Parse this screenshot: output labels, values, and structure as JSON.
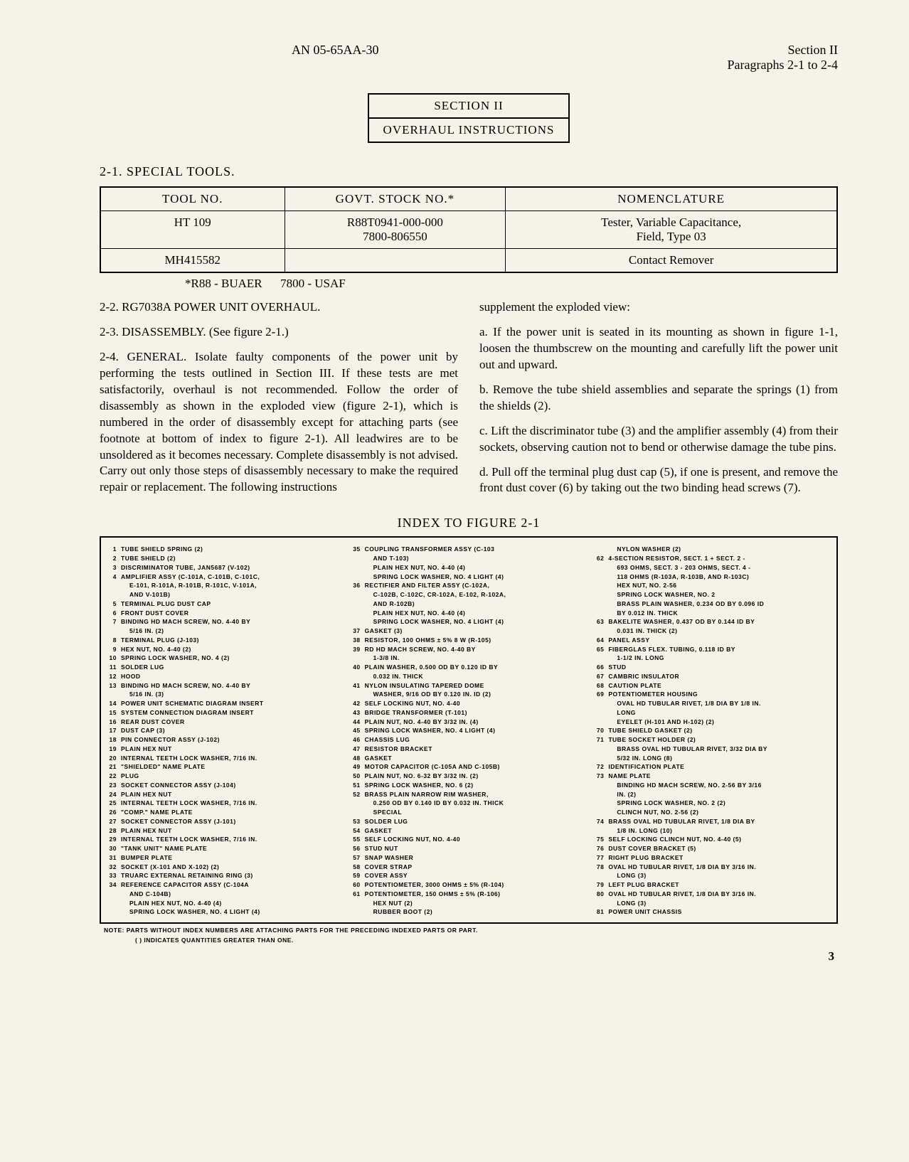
{
  "header": {
    "docNumber": "AN 05-65AA-30",
    "section": "Section II",
    "paragraphs": "Paragraphs 2-1 to 2-4"
  },
  "sectionBox": {
    "line1": "SECTION II",
    "line2": "OVERHAUL INSTRUCTIONS"
  },
  "specialTools": {
    "heading": "2-1. SPECIAL TOOLS.",
    "columns": [
      "TOOL NO.",
      "GOVT. STOCK NO.*",
      "NOMENCLATURE"
    ],
    "rows": [
      {
        "tool": "HT 109",
        "stock": "R88T0941-000-000\n7800-806550",
        "nomen": "Tester, Variable Capacitance,\nField, Type 03"
      },
      {
        "tool": "MH415582",
        "stock": "",
        "nomen": "Contact Remover"
      }
    ],
    "footnote": "*R88 - BUAER      7800 - USAF"
  },
  "body": {
    "leftCol": [
      "2-2. RG7038A POWER UNIT OVERHAUL.",
      "2-3. DISASSEMBLY. (See figure 2-1.)",
      "2-4. GENERAL. Isolate faulty components of the power unit by performing the tests outlined in Section III. If these tests are met satisfactorily, overhaul is not recommended. Follow the order of disassembly as shown in the exploded view (figure 2-1), which is numbered in the order of disassembly except for attaching parts (see footnote at bottom of index to figure 2-1). All leadwires are to be unsoldered as it becomes necessary. Complete disassembly is not advised. Carry out only those steps of disassembly necessary to make the required repair or replacement. The following instructions"
    ],
    "rightCol": [
      "supplement the exploded view:",
      "a. If the power unit is seated in its mounting as shown in figure 1-1, loosen the thumbscrew on the mounting and carefully lift the power unit out and upward.",
      "b. Remove the tube shield assemblies and separate the springs (1) from the shields (2).",
      "c. Lift the discriminator tube (3) and the amplifier assembly (4) from their sockets, observing caution not to bend or otherwise damage the tube pins.",
      "d. Pull off the terminal plug dust cap (5), if one is present, and remove the front dust cover (6) by taking out the two binding head screws (7)."
    ]
  },
  "indexTitle": "INDEX TO FIGURE 2-1",
  "indexCols": [
    [
      {
        "n": "1",
        "t": "TUBE SHIELD SPRING (2)"
      },
      {
        "n": "2",
        "t": "TUBE SHIELD (2)"
      },
      {
        "n": "3",
        "t": "DISCRIMINATOR TUBE, JAN5687 (V-102)"
      },
      {
        "n": "4",
        "t": "AMPLIFIER ASSY (C-101A, C-101B, C-101C,"
      },
      {
        "n": "",
        "t": "E-101, R-101A, R-101B, R-101C, V-101A,",
        "sub": true
      },
      {
        "n": "",
        "t": "AND V-101B)",
        "sub": true
      },
      {
        "n": "5",
        "t": "TERMINAL PLUG DUST CAP"
      },
      {
        "n": "6",
        "t": "FRONT DUST COVER"
      },
      {
        "n": "7",
        "t": "BINDING HD MACH SCREW, NO. 4-40 BY"
      },
      {
        "n": "",
        "t": "5/16 IN. (2)",
        "sub": true
      },
      {
        "n": "8",
        "t": "TERMINAL PLUG (J-103)"
      },
      {
        "n": "9",
        "t": "HEX NUT, NO. 4-40 (2)"
      },
      {
        "n": "10",
        "t": "SPRING LOCK WASHER, NO. 4 (2)"
      },
      {
        "n": "11",
        "t": "SOLDER LUG"
      },
      {
        "n": "12",
        "t": "HOOD"
      },
      {
        "n": "13",
        "t": "BINDING HD MACH SCREW, NO. 4-40 BY"
      },
      {
        "n": "",
        "t": "5/16 IN. (3)",
        "sub": true
      },
      {
        "n": "14",
        "t": "POWER UNIT SCHEMATIC DIAGRAM INSERT"
      },
      {
        "n": "15",
        "t": "SYSTEM CONNECTION DIAGRAM INSERT"
      },
      {
        "n": "16",
        "t": "REAR DUST COVER"
      },
      {
        "n": "17",
        "t": "DUST CAP (3)"
      },
      {
        "n": "18",
        "t": "PIN CONNECTOR ASSY (J-102)"
      },
      {
        "n": "19",
        "t": "PLAIN HEX NUT"
      },
      {
        "n": "20",
        "t": "INTERNAL TEETH LOCK WASHER, 7/16 IN."
      },
      {
        "n": "21",
        "t": "\"SHIELDED\" NAME PLATE"
      },
      {
        "n": "22",
        "t": "PLUG"
      },
      {
        "n": "23",
        "t": "SOCKET CONNECTOR ASSY (J-104)"
      },
      {
        "n": "24",
        "t": "PLAIN HEX NUT"
      },
      {
        "n": "25",
        "t": "INTERNAL TEETH LOCK WASHER, 7/16 IN."
      },
      {
        "n": "26",
        "t": "\"COMP.\" NAME PLATE"
      },
      {
        "n": "27",
        "t": "SOCKET CONNECTOR ASSY (J-101)"
      },
      {
        "n": "28",
        "t": "PLAIN HEX NUT"
      },
      {
        "n": "29",
        "t": "INTERNAL TEETH LOCK WASHER, 7/16 IN."
      },
      {
        "n": "30",
        "t": "\"TANK UNIT\" NAME PLATE"
      },
      {
        "n": "31",
        "t": "BUMPER PLATE"
      },
      {
        "n": "32",
        "t": "SOCKET (X-101 AND X-102) (2)"
      },
      {
        "n": "33",
        "t": "TRUARC EXTERNAL RETAINING RING (3)"
      },
      {
        "n": "34",
        "t": "REFERENCE CAPACITOR ASSY (C-104A"
      },
      {
        "n": "",
        "t": "AND C-104B)",
        "sub": true
      },
      {
        "n": "",
        "t": "PLAIN HEX NUT, NO. 4-40 (4)",
        "sub": true
      },
      {
        "n": "",
        "t": "SPRING LOCK WASHER, NO. 4 LIGHT (4)",
        "sub": true
      }
    ],
    [
      {
        "n": "35",
        "t": "COUPLING TRANSFORMER ASSY (C-103"
      },
      {
        "n": "",
        "t": "AND T-103)",
        "sub": true
      },
      {
        "n": "",
        "t": "PLAIN HEX NUT, NO. 4-40 (4)",
        "sub": true
      },
      {
        "n": "",
        "t": "SPRING LOCK WASHER, NO. 4 LIGHT (4)",
        "sub": true
      },
      {
        "n": "36",
        "t": "RECTIFIER AND FILTER ASSY (C-102A,"
      },
      {
        "n": "",
        "t": "C-102B, C-102C, CR-102A, E-102, R-102A,",
        "sub": true
      },
      {
        "n": "",
        "t": "AND R-102B)",
        "sub": true
      },
      {
        "n": "",
        "t": "PLAIN HEX NUT, NO. 4-40 (4)",
        "sub": true
      },
      {
        "n": "",
        "t": "SPRING LOCK WASHER, NO. 4 LIGHT (4)",
        "sub": true
      },
      {
        "n": "37",
        "t": "GASKET (3)"
      },
      {
        "n": "38",
        "t": "RESISTOR, 100 OHMS ± 5% 8 W (R-105)"
      },
      {
        "n": "39",
        "t": "RD HD MACH SCREW, NO. 4-40 BY"
      },
      {
        "n": "",
        "t": "1-3/8 IN.",
        "sub": true
      },
      {
        "n": "40",
        "t": "PLAIN WASHER, 0.500 OD BY 0.120 ID BY"
      },
      {
        "n": "",
        "t": "0.032 IN. THICK",
        "sub": true
      },
      {
        "n": "41",
        "t": "NYLON INSULATING TAPERED DOME"
      },
      {
        "n": "",
        "t": "WASHER, 9/16 OD BY 0.120 IN. ID (2)",
        "sub": true
      },
      {
        "n": "42",
        "t": "SELF LOCKING NUT, NO. 4-40"
      },
      {
        "n": "43",
        "t": "BRIDGE TRANSFORMER (T-101)"
      },
      {
        "n": "44",
        "t": "PLAIN NUT, NO. 4-40 BY 3/32 IN. (4)"
      },
      {
        "n": "45",
        "t": "SPRING LOCK WASHER, NO. 4 LIGHT (4)"
      },
      {
        "n": "46",
        "t": "CHASSIS LUG"
      },
      {
        "n": "47",
        "t": "RESISTOR BRACKET"
      },
      {
        "n": "48",
        "t": "GASKET"
      },
      {
        "n": "49",
        "t": "MOTOR CAPACITOR (C-105A AND C-105B)"
      },
      {
        "n": "50",
        "t": "PLAIN NUT, NO. 6-32 BY 3/32 IN. (2)"
      },
      {
        "n": "51",
        "t": "SPRING LOCK WASHER, NO. 6 (2)"
      },
      {
        "n": "52",
        "t": "BRASS PLAIN NARROW RIM WASHER,"
      },
      {
        "n": "",
        "t": "0.250 OD BY 0.140 ID BY 0.032 IN. THICK",
        "sub": true
      },
      {
        "n": "",
        "t": "SPECIAL",
        "sub": true
      },
      {
        "n": "53",
        "t": "SOLDER LUG"
      },
      {
        "n": "54",
        "t": "GASKET"
      },
      {
        "n": "55",
        "t": "SELF LOCKING NUT, NO. 4-40"
      },
      {
        "n": "56",
        "t": "STUD NUT"
      },
      {
        "n": "57",
        "t": "SNAP WASHER"
      },
      {
        "n": "58",
        "t": "COVER STRAP"
      },
      {
        "n": "59",
        "t": "COVER ASSY"
      },
      {
        "n": "60",
        "t": "POTENTIOMETER, 3000 OHMS ± 5% (R-104)"
      },
      {
        "n": "61",
        "t": "POTENTIOMETER, 150 OHMS ± 5% (R-106)"
      },
      {
        "n": "",
        "t": "HEX NUT (2)",
        "sub": true
      },
      {
        "n": "",
        "t": "RUBBER BOOT (2)",
        "sub": true
      }
    ],
    [
      {
        "n": "",
        "t": "NYLON WASHER (2)",
        "sub": true
      },
      {
        "n": "62",
        "t": "4-SECTION RESISTOR, SECT. 1 + SECT. 2 -"
      },
      {
        "n": "",
        "t": "693 OHMS, SECT. 3 - 203 OHMS, SECT. 4 -",
        "sub": true
      },
      {
        "n": "",
        "t": "118 OHMS (R-103A, R-103B, AND R-103C)",
        "sub": true
      },
      {
        "n": "",
        "t": "HEX NUT, NO. 2-56",
        "sub": true
      },
      {
        "n": "",
        "t": "SPRING LOCK WASHER, NO. 2",
        "sub": true
      },
      {
        "n": "",
        "t": "BRASS PLAIN WASHER, 0.234 OD BY 0.096 ID",
        "sub": true
      },
      {
        "n": "",
        "t": "BY 0.012 IN. THICK",
        "sub": true
      },
      {
        "n": "63",
        "t": "BAKELITE WASHER, 0.437 OD BY 0.144 ID BY"
      },
      {
        "n": "",
        "t": "0.031 IN. THICK (2)",
        "sub": true
      },
      {
        "n": "64",
        "t": "PANEL ASSY"
      },
      {
        "n": "65",
        "t": "FIBERGLAS FLEX. TUBING, 0.118 ID BY"
      },
      {
        "n": "",
        "t": "1-1/2 IN. LONG",
        "sub": true
      },
      {
        "n": "66",
        "t": "STUD"
      },
      {
        "n": "67",
        "t": "CAMBRIC INSULATOR"
      },
      {
        "n": "68",
        "t": "CAUTION PLATE"
      },
      {
        "n": "69",
        "t": "POTENTIOMETER HOUSING"
      },
      {
        "n": "",
        "t": "OVAL HD TUBULAR RIVET, 1/8 DIA BY 1/8 IN.",
        "sub": true
      },
      {
        "n": "",
        "t": "LONG",
        "sub": true
      },
      {
        "n": "",
        "t": "EYELET (H-101 AND H-102) (2)",
        "sub": true
      },
      {
        "n": "70",
        "t": "TUBE SHIELD GASKET (2)"
      },
      {
        "n": "71",
        "t": "TUBE SOCKET HOLDER (2)"
      },
      {
        "n": "",
        "t": "BRASS OVAL HD TUBULAR RIVET, 3/32 DIA BY",
        "sub": true
      },
      {
        "n": "",
        "t": "5/32 IN. LONG (8)",
        "sub": true
      },
      {
        "n": "72",
        "t": "IDENTIFICATION PLATE"
      },
      {
        "n": "73",
        "t": "NAME PLATE"
      },
      {
        "n": "",
        "t": "BINDING HD MACH SCREW, NO. 2-56 BY 3/16",
        "sub": true
      },
      {
        "n": "",
        "t": "IN. (2)",
        "sub": true
      },
      {
        "n": "",
        "t": "SPRING LOCK WASHER, NO. 2 (2)",
        "sub": true
      },
      {
        "n": "",
        "t": "CLINCH NUT, NO. 2-56 (2)",
        "sub": true
      },
      {
        "n": "74",
        "t": "BRASS OVAL HD TUBULAR RIVET, 1/8 DIA BY"
      },
      {
        "n": "",
        "t": "1/8 IN. LONG (10)",
        "sub": true
      },
      {
        "n": "75",
        "t": "SELF LOCKING CLINCH NUT, NO. 4-40 (5)"
      },
      {
        "n": "76",
        "t": "DUST COVER BRACKET (5)"
      },
      {
        "n": "77",
        "t": "RIGHT PLUG BRACKET"
      },
      {
        "n": "78",
        "t": "OVAL HD TUBULAR RIVET, 1/8 DIA BY 3/16 IN."
      },
      {
        "n": "",
        "t": "LONG (3)",
        "sub": true
      },
      {
        "n": "79",
        "t": "LEFT PLUG BRACKET"
      },
      {
        "n": "80",
        "t": "OVAL HD TUBULAR RIVET, 1/8 DIA BY 3/16 IN."
      },
      {
        "n": "",
        "t": "LONG (3)",
        "sub": true
      },
      {
        "n": "81",
        "t": "POWER UNIT CHASSIS"
      }
    ]
  ],
  "indexNote1": "NOTE: PARTS WITHOUT INDEX NUMBERS ARE ATTACHING PARTS FOR THE PRECEDING INDEXED PARTS OR PART.",
  "indexNote2": "( ) INDICATES QUANTITIES GREATER THAN ONE.",
  "pageNum": "3"
}
